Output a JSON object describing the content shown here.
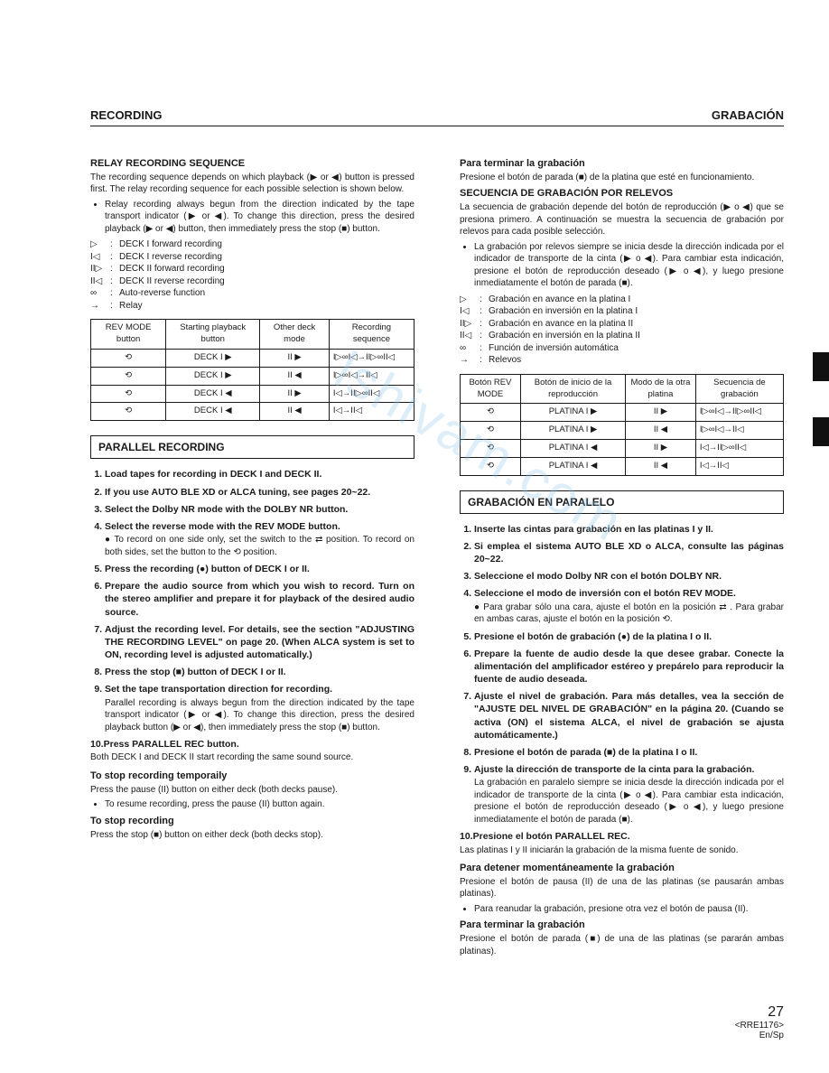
{
  "header": {
    "left": "RECORDING",
    "right": "GRABACIÓN"
  },
  "watermark": "lshivam.com",
  "left": {
    "h1": "RELAY RECORDING SEQUENCE",
    "p1": "The recording sequence depends on which playback (▶ or ◀) button is pressed first. The relay recording sequence for each possible selection is shown below.",
    "bul1": "Relay recording always begun from the direction indicated by the tape transport indicator (▶ or ◀). To change this direction, press the desired playback (▶ or ◀) button, then immediately  press the stop (■) button.",
    "legend": [
      {
        "sym": "▷",
        "txt": "DECK I forward recording"
      },
      {
        "sym": "I◁",
        "txt": "DECK I reverse recording"
      },
      {
        "sym": "II▷",
        "txt": "DECK II forward recording"
      },
      {
        "sym": "II◁",
        "txt": "DECK II reverse recording"
      },
      {
        "sym": "∞",
        "txt": "Auto-reverse function"
      },
      {
        "sym": "→",
        "txt": "Relay"
      }
    ],
    "table": {
      "headers": [
        "REV MODE button",
        "Starting playback button",
        "Other deck mode",
        "Recording sequence"
      ],
      "rows": [
        [
          "⟲",
          "DECK I ▶",
          "II ▶",
          "I▷∞I◁→II▷∞II◁"
        ],
        [
          "⟲",
          "DECK I ▶",
          "II ◀",
          "I▷∞I◁→II◁"
        ],
        [
          "⟲",
          "DECK I ◀",
          "II ▶",
          "I◁→II▷∞II◁"
        ],
        [
          "⟲",
          "DECK I ◀",
          "II ◀",
          "I◁→II◁"
        ]
      ]
    },
    "box": "PARALLEL RECORDING",
    "steps": [
      {
        "t": "Load tapes for recording in DECK I and DECK II."
      },
      {
        "t": "If you use AUTO BLE XD or ALCA tuning, see pages 20~22."
      },
      {
        "t": "Select the Dolby NR mode with the DOLBY NR button."
      },
      {
        "t": "Select the reverse mode with the REV MODE button.",
        "b": "● To record on one side only, set the switch to the ⇄ position. To record on both sides, set the button to the ⟲ position."
      },
      {
        "t": "Press the recording (●) button of DECK I or II."
      },
      {
        "t": "Prepare the audio source from which you wish to record. Turn on the stereo amplifier and prepare it for playback of the desired audio source."
      },
      {
        "t": "Adjust the recording level. For details, see the section \"ADJUSTING THE RECORDING LEVEL\" on page 20. (When ALCA system is set to ON, recording level is adjusted automatically.)"
      },
      {
        "t": "Press the stop (■) button of DECK I or II."
      },
      {
        "t": "Set the tape transportation direction for recording.",
        "b": "Parallel recording is always begun from the direction indicated by the tape transport indicator (▶ or ◀). To change this direction, press the desired playback button (▶ or ◀), then immediately press the stop (■) button."
      },
      {
        "t": "Press PARALLEL REC button.",
        "b": "Both DECK I and DECK II start recording the same sound source."
      }
    ],
    "stop_temp_h": "To stop recording temporaily",
    "stop_temp_p": "Press the pause (II) button on either deck (both decks pause).",
    "stop_temp_b": "To resume recording, press the pause (II) button again.",
    "stop_h": "To stop recording",
    "stop_p": "Press the stop (■) button on either deck (both decks stop)."
  },
  "right": {
    "h1": "Para terminar la grabación",
    "p1": "Presione el botón de parada (■) de la platina que esté en funcionamiento.",
    "h2": "SECUENCIA DE GRABACIÓN POR RELEVOS",
    "p2": "La secuencia de grabación depende del botón de reproducción (▶ o ◀) que se presiona primero.  A continuación se muestra la secuencia de grabación por relevos para cada posible selección.",
    "bul1": "La grabación por relevos siempre se inicia desde la dirección indicada por el indicador de transporte de la cinta (▶ o ◀). Para cambiar esta indicación, presione el botón de reproducción deseado (▶ o ◀), y luego presione inmediatamente el botón de parada (■).",
    "legend": [
      {
        "sym": "▷",
        "txt": "Grabación en avance en la platina I"
      },
      {
        "sym": "I◁",
        "txt": "Grabación en inversión en la platina I"
      },
      {
        "sym": "II▷",
        "txt": "Grabación en avance en la platina II"
      },
      {
        "sym": "II◁",
        "txt": "Grabación en inversión en la platina II"
      },
      {
        "sym": "∞",
        "txt": "Función de inversión automática"
      },
      {
        "sym": "→",
        "txt": "Relevos"
      }
    ],
    "table": {
      "headers": [
        "Botón REV MODE",
        "Botón de inicio de la reproducción",
        "Modo de la otra platina",
        "Secuencia de grabación"
      ],
      "rows": [
        [
          "⟲",
          "PLATINA I ▶",
          "II ▶",
          "I▷∞I◁→II▷∞II◁"
        ],
        [
          "⟲",
          "PLATINA I ▶",
          "II ◀",
          "I▷∞I◁→II◁"
        ],
        [
          "⟲",
          "PLATINA I ◀",
          "II ▶",
          "I◁→II▷∞II◁"
        ],
        [
          "⟲",
          "PLATINA I ◀",
          "II ◀",
          "I◁→II◁"
        ]
      ]
    },
    "box": "GRABACIÓN EN PARALELO",
    "steps": [
      {
        "t": "Inserte las cintas para grabación en las platinas I y II."
      },
      {
        "t": "Si emplea el sistema AUTO BLE XD o ALCA, consulte las páginas 20~22."
      },
      {
        "t": "Seleccione el modo Dolby NR con el botón DOLBY NR."
      },
      {
        "t": "Seleccione el modo de inversión con el botón REV MODE.",
        "b": "● Para grabar sólo una cara, ajuste el botón en la posición ⇄ . Para grabar en ambas caras, ajuste el botón en la posición ⟲."
      },
      {
        "t": "Presione el botón de grabación (●) de la platina I o II."
      },
      {
        "t": "Prepare la fuente de audio desde la que desee grabar. Conecte la alimentación del amplificador estéreo y prepárelo para reproducir la fuente de audio deseada."
      },
      {
        "t": "Ajuste el nivel de grabación.  Para más detalles, vea la sección de \"AJUSTE DEL NIVEL DE GRABACIÓN\" en la página 20.  (Cuando se activa (ON) el sistema ALCA, el nivel de grabación se ajusta automáticamente.)"
      },
      {
        "t": "Presione el botón de parada (■) de la platina I o II."
      },
      {
        "t": "Ajuste la dirección de transporte de la cinta para la grabación.",
        "b": "La grabación en paralelo siempre se inicia desde la dirección indicada por el indicador de transporte de la cinta (▶ o ◀). Para cambiar esta indicación, presione el botón de reproducción deseado (▶ o ◀), y luego presione inmediatamente el botón de parada (■)."
      },
      {
        "t": "Presione el botón PARALLEL REC.",
        "b": "Las platinas I y II iniciarán la grabación de la misma fuente de sonido."
      }
    ],
    "stop_temp_h": "Para detener momentáneamente la grabación",
    "stop_temp_p": "Presione el botón de pausa (II) de una de las platinas (se pausarán ambas platinas).",
    "stop_temp_b": "Para reanudar la grabación, presione otra vez el botón de pausa (II).",
    "stop_h": "Para terminar la grabación",
    "stop_p": "Presione el botón de parada (■) de una de las platinas (se pararán ambas platinas)."
  },
  "footer": {
    "page": "27",
    "code": "<RRE1176>",
    "lang": "En/Sp"
  }
}
